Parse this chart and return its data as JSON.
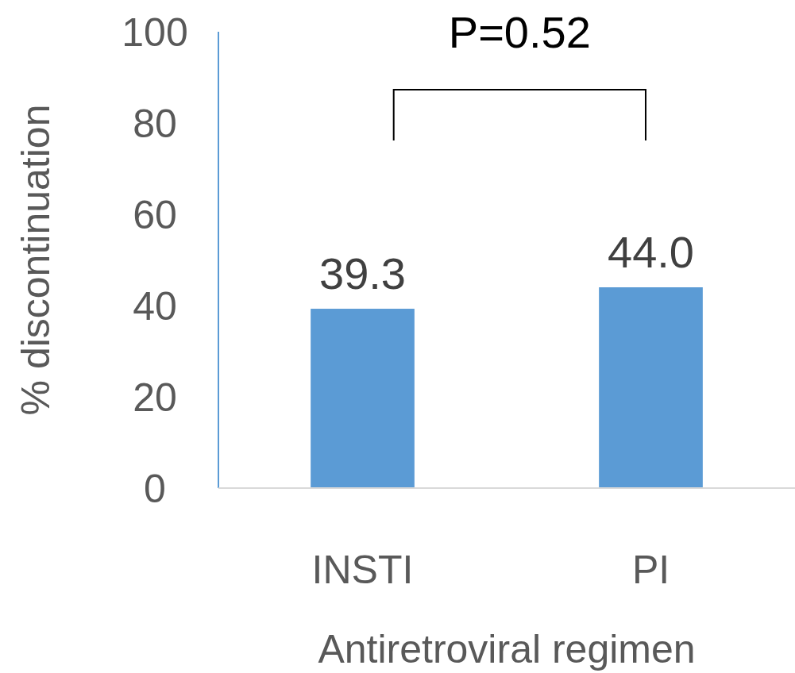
{
  "chart_data": {
    "type": "bar",
    "categories": [
      "INSTI",
      "PI"
    ],
    "values": [
      39.3,
      44.0
    ],
    "value_labels": [
      "39.3",
      "44.0"
    ],
    "color": "#5b9bd5",
    "xlabel": "Antiretroviral regimen",
    "ylabel": "% discontinuation",
    "ylim": [
      0,
      100
    ],
    "yticks": [
      0,
      20,
      40,
      60,
      80,
      100
    ],
    "grid": false,
    "legend": false,
    "annotations": [
      "P=0.52"
    ]
  }
}
